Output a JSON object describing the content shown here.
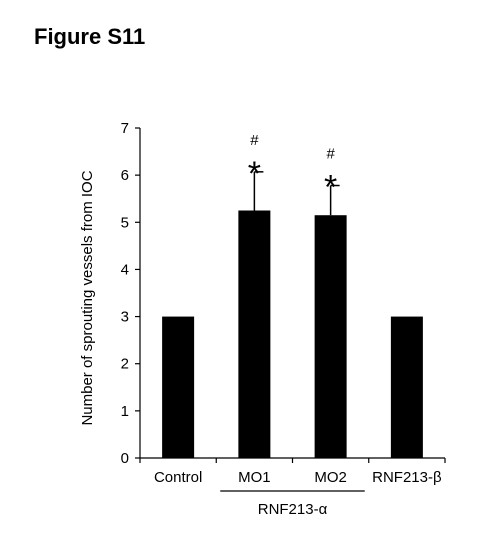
{
  "figure_title": "Figure S11",
  "chart_data": {
    "type": "bar",
    "title": "",
    "xlabel": "",
    "ylabel": "Number of sprouting vessels from IOC",
    "ylim": [
      0,
      7
    ],
    "yticks": [
      "0",
      "1",
      "2",
      "3",
      "4",
      "5",
      "6",
      "7"
    ],
    "categories": [
      "Control",
      "MO1",
      "MO2",
      "RNF213-β"
    ],
    "values": [
      3.0,
      5.25,
      5.15,
      3.0
    ],
    "errors": [
      0,
      0.82,
      0.63,
      0
    ],
    "annotations": [
      {
        "category": "MO1",
        "marks": [
          "#",
          "*"
        ]
      },
      {
        "category": "MO2",
        "marks": [
          "#",
          "*"
        ]
      }
    ],
    "group_label": {
      "text": "RNF213-α",
      "categories": [
        "MO1",
        "MO2"
      ]
    },
    "bar_color": "#000000",
    "grid": false,
    "legend": "none"
  }
}
